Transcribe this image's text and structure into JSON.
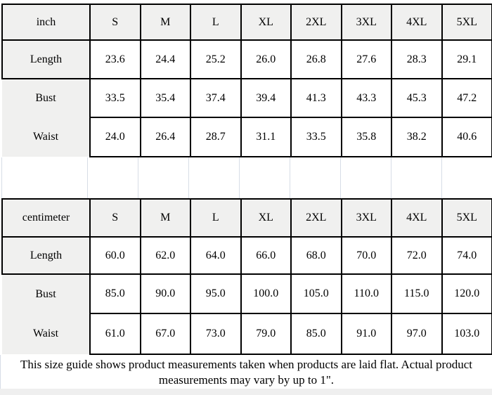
{
  "page": {
    "background": "#ffffff",
    "border_color": "#000000",
    "cell_fill": "#f0f0ef",
    "gridline_color": "#d7dde6",
    "bottom_strip_color": "#efefef"
  },
  "size_tables": [
    {
      "unit_label": "inch",
      "sizes": [
        "S",
        "M",
        "L",
        "XL",
        "2XL",
        "3XL",
        "4XL",
        "5XL"
      ],
      "rows": [
        {
          "label": "Length",
          "values": [
            "23.6",
            "24.4",
            "25.2",
            "26.0",
            "26.8",
            "27.6",
            "28.3",
            "29.1"
          ]
        },
        {
          "label": "Bust",
          "values": [
            "33.5",
            "35.4",
            "37.4",
            "39.4",
            "41.3",
            "43.3",
            "45.3",
            "47.2"
          ]
        },
        {
          "label": "Waist",
          "values": [
            "24.0",
            "26.4",
            "28.7",
            "31.1",
            "33.5",
            "35.8",
            "38.2",
            "40.6"
          ]
        }
      ]
    },
    {
      "unit_label": "centimeter",
      "sizes": [
        "S",
        "M",
        "L",
        "XL",
        "2XL",
        "3XL",
        "4XL",
        "5XL"
      ],
      "rows": [
        {
          "label": "Length",
          "values": [
            "60.0",
            "62.0",
            "64.0",
            "66.0",
            "68.0",
            "70.0",
            "72.0",
            "74.0"
          ]
        },
        {
          "label": "Bust",
          "values": [
            "85.0",
            "90.0",
            "95.0",
            "100.0",
            "105.0",
            "110.0",
            "115.0",
            "120.0"
          ]
        },
        {
          "label": "Waist",
          "values": [
            "61.0",
            "67.0",
            "73.0",
            "79.0",
            "85.0",
            "91.0",
            "97.0",
            "103.0"
          ]
        }
      ]
    }
  ],
  "footer": {
    "note": "This size guide shows product measurements taken when products are laid flat. Actual product measurements may vary by up to 1\"."
  }
}
